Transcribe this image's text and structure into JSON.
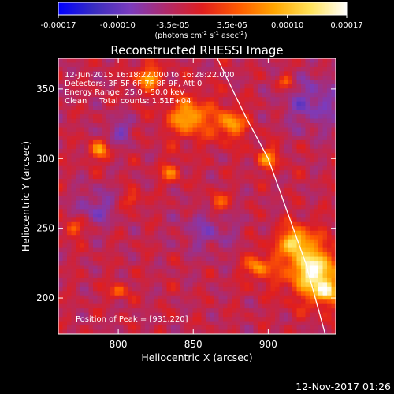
{
  "chart_data": {
    "type": "heatmap",
    "title": "Reconstructed RHESSI Image",
    "xlabel": "Heliocentric X (arcsec)",
    "ylabel": "Heliocentric Y (arcsec)",
    "xlim": [
      760,
      945
    ],
    "ylim": [
      174,
      372
    ],
    "xticks": [
      800,
      850,
      900
    ],
    "yticks": [
      200,
      250,
      300,
      350
    ],
    "colorbar": {
      "min": -0.00017,
      "max": 0.00017,
      "ticks": [
        "-0.00017",
        "-0.00010",
        "-3.5e-05",
        "3.5e-05",
        "0.00010",
        "0.00017"
      ],
      "unit_prefix": "(photons cm",
      "unit_exp1": "-2",
      "unit_mid": " s",
      "unit_exp2": "-1",
      "unit_mid2": " asec",
      "unit_exp3": "-2",
      "unit_suffix": ")",
      "colors": [
        "#0000ff",
        "#3a2dc0",
        "#7b3bbd",
        "#b02a6a",
        "#e01e1e",
        "#ff5a00",
        "#ffa600",
        "#ffe35a",
        "#ffffff"
      ]
    },
    "annotations": [
      "12-Jun-2015 16:18:22.000 to 16:28:22.000",
      "Detectors: 3F 5F 6F 7F 8F 9F, Att 0",
      "Energy Range: 25.0 - 50.0 keV",
      "Clean     Total counts: 1.51E+04"
    ],
    "peak_label": "Position of Peak = [931,220]",
    "peak": [
      931,
      220
    ],
    "limb_curve": [
      [
        866,
        372
      ],
      [
        885,
        330
      ],
      [
        900,
        300
      ],
      [
        915,
        255
      ],
      [
        925,
        225
      ],
      [
        938,
        174
      ]
    ],
    "hot_regions": [
      {
        "x": 930,
        "y": 220,
        "r": 20,
        "level": 0.97
      },
      {
        "x": 918,
        "y": 240,
        "r": 12,
        "level": 0.85
      },
      {
        "x": 938,
        "y": 205,
        "r": 10,
        "level": 0.85
      },
      {
        "x": 847,
        "y": 330,
        "r": 16,
        "level": 0.8
      },
      {
        "x": 820,
        "y": 358,
        "r": 10,
        "level": 0.78
      },
      {
        "x": 875,
        "y": 325,
        "r": 12,
        "level": 0.75
      },
      {
        "x": 787,
        "y": 306,
        "r": 8,
        "level": 0.72
      },
      {
        "x": 835,
        "y": 290,
        "r": 8,
        "level": 0.66
      },
      {
        "x": 866,
        "y": 268,
        "r": 9,
        "level": 0.65
      },
      {
        "x": 900,
        "y": 300,
        "r": 9,
        "level": 0.72
      },
      {
        "x": 770,
        "y": 250,
        "r": 8,
        "level": 0.65
      },
      {
        "x": 893,
        "y": 222,
        "r": 10,
        "level": 0.72
      },
      {
        "x": 800,
        "y": 205,
        "r": 7,
        "level": 0.64
      },
      {
        "x": 912,
        "y": 355,
        "r": 7,
        "level": 0.62
      },
      {
        "x": 810,
        "y": 270,
        "r": 7,
        "level": 0.62
      }
    ],
    "cold_regions": [
      {
        "x": 930,
        "y": 340,
        "r": 20,
        "level": 0.26
      },
      {
        "x": 785,
        "y": 265,
        "r": 14,
        "level": 0.28
      },
      {
        "x": 860,
        "y": 250,
        "r": 18,
        "level": 0.3
      },
      {
        "x": 800,
        "y": 320,
        "r": 10,
        "level": 0.28
      }
    ]
  },
  "footer": {
    "date": "12-Nov-2017 01:26"
  }
}
